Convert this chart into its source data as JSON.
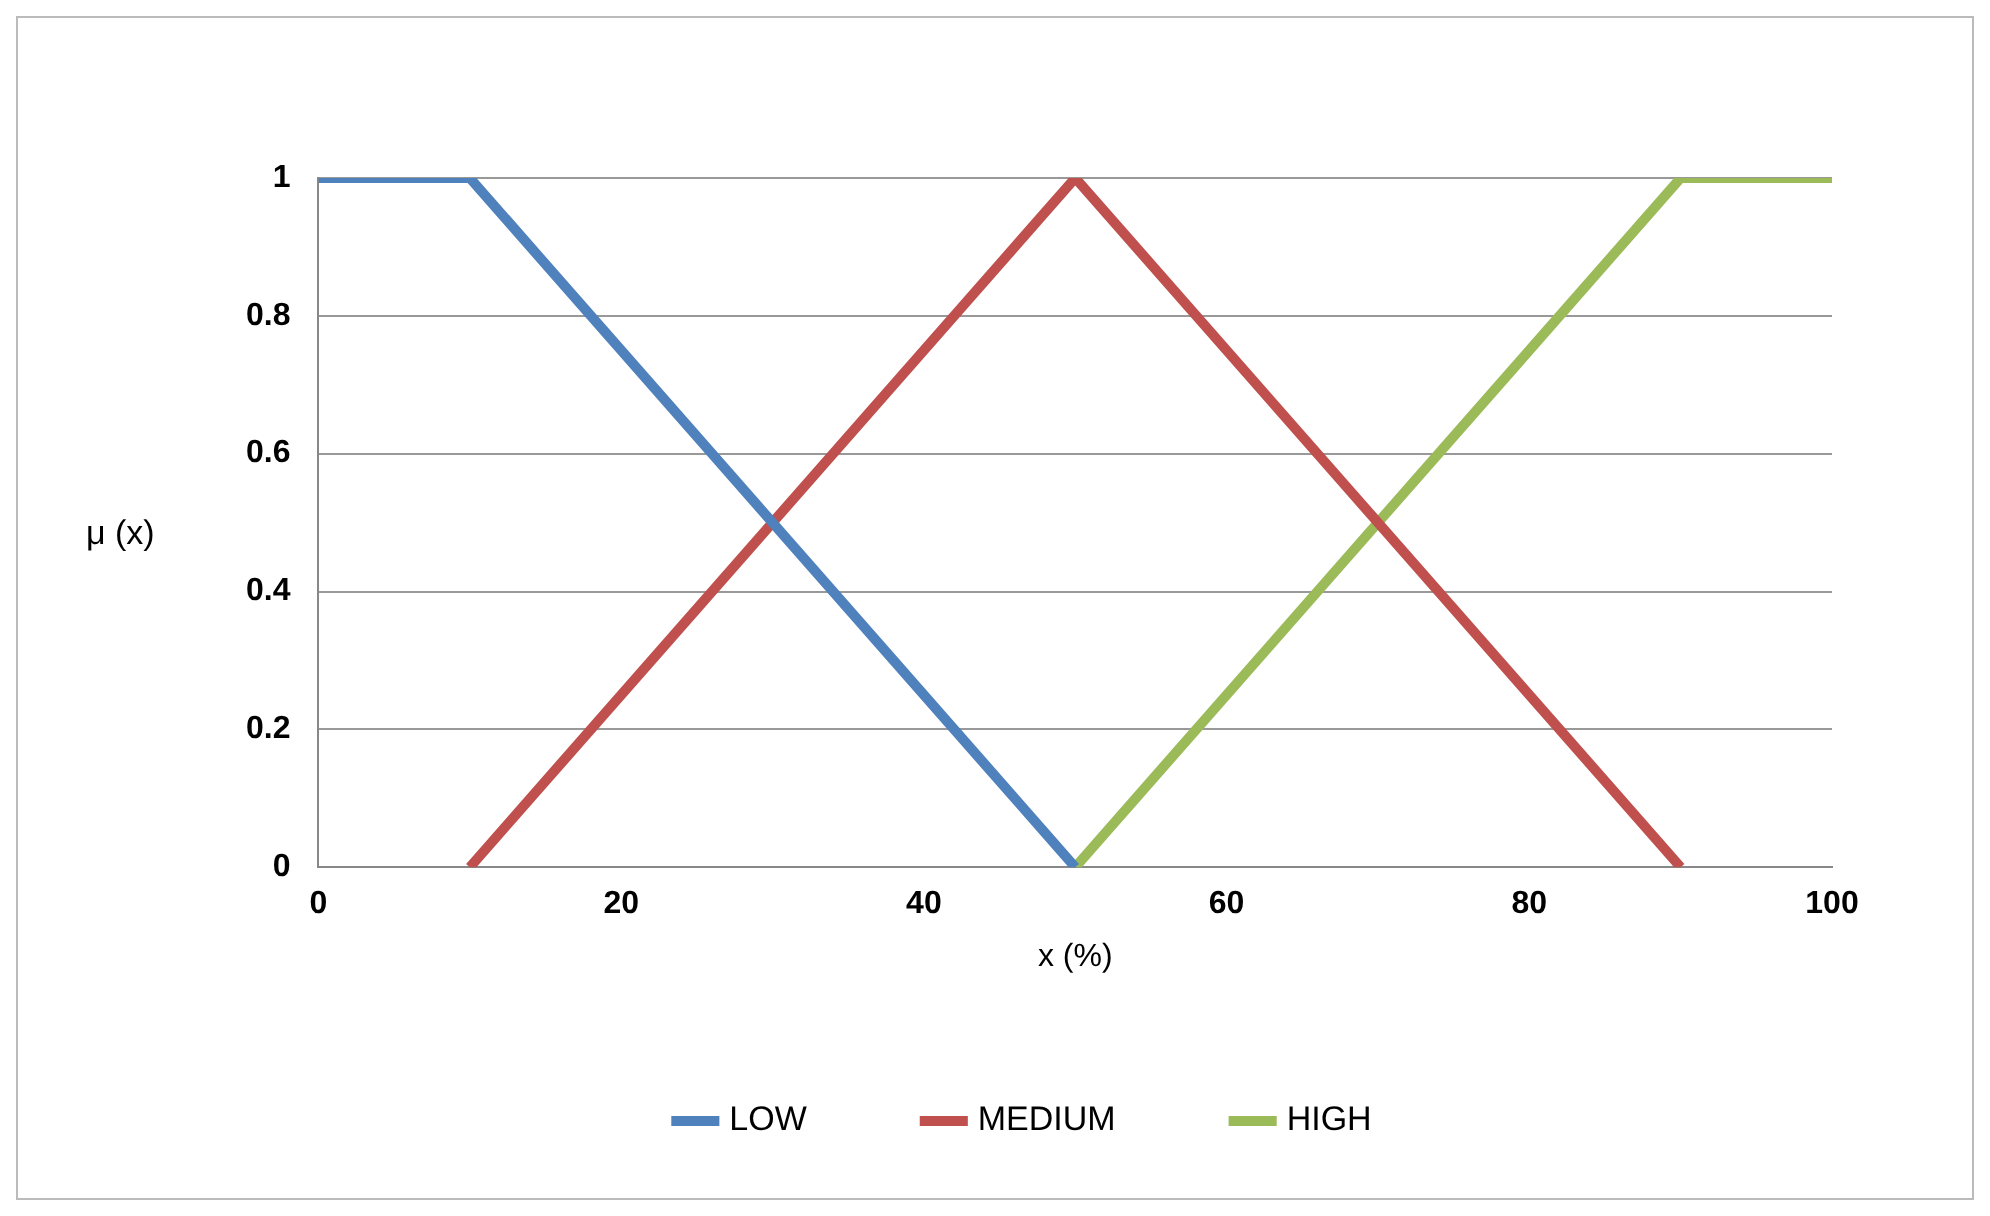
{
  "chart_data": {
    "type": "line",
    "xlabel": "x (%)",
    "ylabel": "μ (x)",
    "xlim": [
      0,
      100
    ],
    "xticks": [
      0,
      20,
      40,
      60,
      80,
      100
    ],
    "ylim": [
      0,
      1
    ],
    "yticks": [
      0,
      0.2,
      0.4,
      0.6,
      0.8,
      1
    ],
    "grid": "y",
    "legend": "bottom",
    "series": [
      {
        "name": "LOW",
        "color": "#4f81bd",
        "x": [
          0,
          10,
          50
        ],
        "values": [
          1,
          1,
          0
        ]
      },
      {
        "name": "MEDIUM",
        "color": "#c0504d",
        "x": [
          10,
          50,
          90
        ],
        "values": [
          0,
          1,
          0
        ]
      },
      {
        "name": "HIGH",
        "color": "#9bbb59",
        "x": [
          50,
          90,
          100
        ],
        "values": [
          0,
          1,
          1
        ]
      }
    ]
  }
}
